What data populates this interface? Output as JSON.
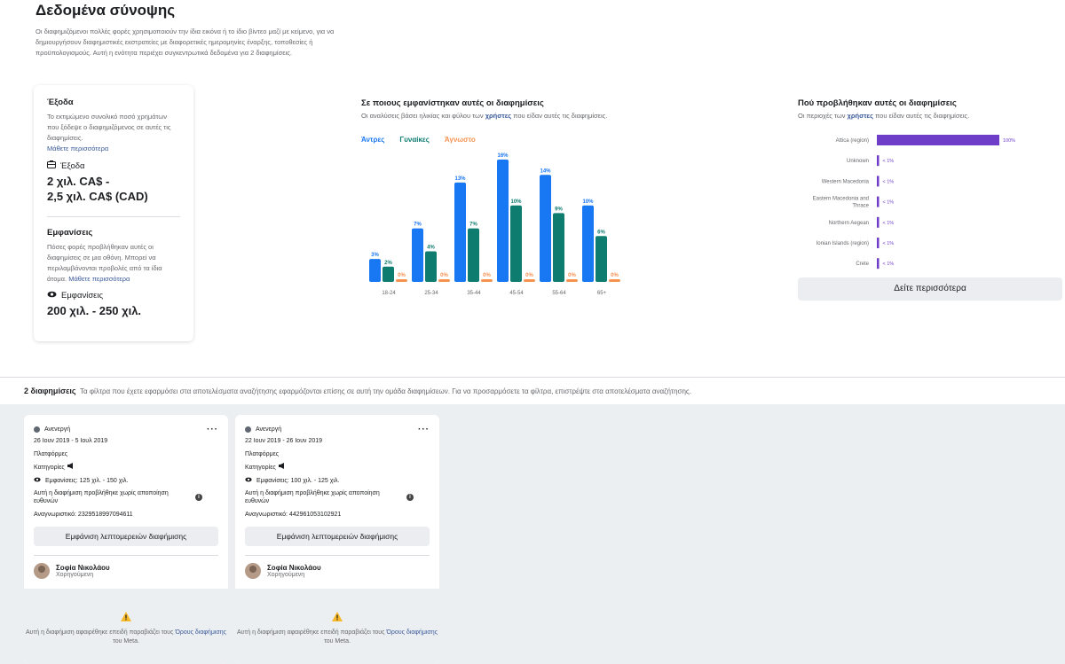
{
  "summary": {
    "title": "Δεδομένα σύνοψης",
    "description": "Οι διαφημιζόμενοι πολλές φορές χρησιμοποιούν την ίδια εικόνα ή το ίδιο βίντεο μαζί με κείμενο, για να δημιουργήσουν διαφημιστικές εκστρατείες με διαφορετικές ημερομηνίες έναρξης, τοποθεσίες ή προϋπολογισμούς. Αυτή η ενότητα περιέχει συγκεντρωτικά δεδομένα για 2 διαφημίσεις."
  },
  "spend": {
    "heading": "Έξοδα",
    "text": "Το εκτιμώμενο συνολικό ποσό χρημάτων που ξόδεψε ο διαφημιζόμενος σε αυτές τις διαφημίσεις.",
    "learn_more": "Μάθετε περισσότερα",
    "label": "Έξοδα",
    "value_line1": "2 χιλ. CA$ -",
    "value_line2": "2,5 χιλ. CA$ (CAD)"
  },
  "impressions": {
    "heading": "Εμφανίσεις",
    "text": "Πόσες φορές προβλήθηκαν αυτές οι διαφημίσεις σε μια οθόνη. Μπορεί να περιλαμβάνονται προβολές από τα ίδια άτομα.",
    "learn_more": "Μάθετε περισσότερα",
    "label": "Εμφανίσεις",
    "value": "200 χιλ. - 250 χιλ."
  },
  "audience": {
    "title": "Σε ποιους εμφανίστηκαν αυτές οι διαφημίσεις",
    "subtitle_pre": "Οι αναλύσεις βάσει ηλικίας και φύλου των ",
    "subtitle_link": "χρήστες",
    "subtitle_post": " που είδαν αυτές τις διαφημίσεις.",
    "legend": {
      "men": "Άντρες",
      "women": "Γυναίκες",
      "unknown": "Άγνωστο"
    }
  },
  "regions_panel": {
    "title": "Πού προβλήθηκαν αυτές οι διαφημίσεις",
    "subtitle_pre": "Οι περιοχές των ",
    "subtitle_link": "χρήστες",
    "subtitle_post": " που είδαν αυτές τις διαφημίσεις.",
    "see_more": "Δείτε περισσότερα"
  },
  "results": {
    "count": "2 διαφημίσεις",
    "note": "Τα φίλτρα που έχετε εφαρμόσει στα αποτελέσματα αναζήτησης εφαρμόζονται επίσης σε αυτή την ομάδα διαφημίσεων. Για να προσαρμόσετε τα φίλτρα, επιστρέψτε στα αποτελέσματα αναζήτησης."
  },
  "ads": [
    {
      "status": "Ανενεργή",
      "dates": "26 Ιουν 2019 - 5 Ιουλ 2019",
      "platforms": "Πλατφόρμες",
      "categories": "Κατηγορίες",
      "impressions": "Εμφανίσεις: 125 χιλ. - 150 χιλ.",
      "disclaimer": "Αυτή η διαφήμιση προβλήθηκε χωρίς αποποίηση ευθυνών",
      "id": "Αναγνωριστικό: 2329518997094611",
      "details_button": "Εμφάνιση λεπτομερειών διαφήμισης",
      "advertiser": "Σοφία Νικολάου",
      "sponsored": "Χορηγούμενη",
      "removed_pre": "Αυτή η διαφήμιση αφαιρέθηκε επειδή παραβιάζει τους ",
      "removed_link": "Όρους διαφήμισης",
      "removed_post": " του Meta."
    },
    {
      "status": "Ανενεργή",
      "dates": "22 Ιουν 2019 - 26 Ιουν 2019",
      "platforms": "Πλατφόρμες",
      "categories": "Κατηγορίες",
      "impressions": "Εμφανίσεις: 100 χιλ. - 125 χιλ.",
      "disclaimer": "Αυτή η διαφήμιση προβλήθηκε χωρίς αποποίηση ευθυνών",
      "id": "Αναγνωριστικό: 442961053102921",
      "details_button": "Εμφάνιση λεπτομερειών διαφήμισης",
      "advertiser": "Σοφία Νικολάου",
      "sponsored": "Χορηγούμενη",
      "removed_pre": "Αυτή η διαφήμιση αφαιρέθηκε επειδή παραβιάζει τους ",
      "removed_link": "Όρους διαφήμισης",
      "removed_post": " του Meta."
    }
  ],
  "colors": {
    "men": "#1877f2",
    "women": "#0e7c6f",
    "unknown": "#f5924e",
    "region": "#6f3ec9",
    "link": "#385898"
  },
  "chart_data": [
    {
      "type": "bar",
      "categories": [
        "18-24",
        "25-34",
        "35-44",
        "45-54",
        "55-64",
        "65+"
      ],
      "series": [
        {
          "name": "Άντρες",
          "values": [
            3,
            7,
            13,
            16,
            14,
            10
          ],
          "labels": [
            "3%",
            "7%",
            "13%",
            "16%",
            "14%",
            "10%"
          ]
        },
        {
          "name": "Γυναίκες",
          "values": [
            2,
            4,
            7,
            10,
            9,
            6
          ],
          "labels": [
            "2%",
            "4%",
            "7%",
            "10%",
            "9%",
            "6%"
          ]
        },
        {
          "name": "Άγνωστο",
          "values": [
            0,
            0,
            0,
            0,
            0,
            0
          ],
          "labels": [
            "0%",
            "0%",
            "0%",
            "0%",
            "0%",
            "0%"
          ]
        }
      ],
      "ylim": [
        0,
        16
      ]
    },
    {
      "type": "bar",
      "orientation": "horizontal",
      "categories": [
        "Attica (region)",
        "Unknown",
        "Western Macedonia",
        "Eastern Macedonia and Thrace",
        "Northern Aegean",
        "Ionian Islands (region)",
        "Crete"
      ],
      "values": [
        100,
        0.5,
        0.5,
        0.5,
        0.5,
        0.5,
        0.5
      ],
      "labels": [
        "100%",
        "< 1%",
        "< 1%",
        "< 1%",
        "< 1%",
        "< 1%",
        "< 1%"
      ],
      "xlim": [
        0,
        100
      ]
    }
  ]
}
